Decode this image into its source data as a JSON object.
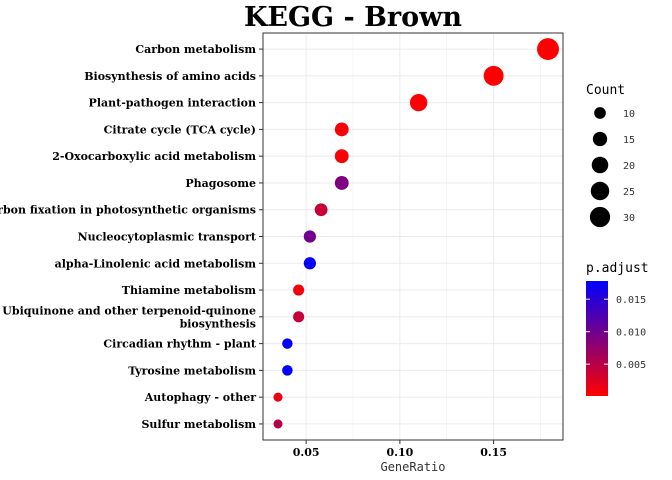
{
  "chart_data": {
    "type": "scatter",
    "title": "KEGG - Brown",
    "xlabel": "GeneRatio",
    "ylabel": "",
    "xlim": [
      0.027,
      0.187
    ],
    "xticks": [
      0.05,
      0.1,
      0.15
    ],
    "xtick_labels": [
      "0.05",
      "0.10",
      "0.15"
    ],
    "grid": true,
    "legend_placement": "right",
    "categories": [
      "Carbon metabolism",
      "Biosynthesis of amino acids",
      "Plant-pathogen interaction",
      "Citrate cycle (TCA cycle)",
      "2-Oxocarboxylic acid metabolism",
      "Phagosome",
      "Carbon fixation in photosynthetic organisms",
      "Nucleocytoplasmic transport",
      "alpha-Linolenic acid metabolism",
      "Thiamine metabolism",
      "Ubiquinone and other terpenoid-quinone\nbiosynthesis",
      "Circadian rhythm - plant",
      "Tyrosine metabolism",
      "Autophagy - other",
      "Sulfur metabolism"
    ],
    "points": [
      {
        "category": "Carbon metabolism",
        "x": 0.179,
        "count": 35,
        "p_adjust": 0.0001
      },
      {
        "category": "Biosynthesis of amino acids",
        "x": 0.15,
        "count": 29,
        "p_adjust": 0.0002
      },
      {
        "category": "Plant-pathogen interaction",
        "x": 0.11,
        "count": 22,
        "p_adjust": 0.0003
      },
      {
        "category": "Citrate cycle (TCA cycle)",
        "x": 0.069,
        "count": 14,
        "p_adjust": 0.0005
      },
      {
        "category": "2-Oxocarboxylic acid metabolism",
        "x": 0.069,
        "count": 14,
        "p_adjust": 0.0005
      },
      {
        "category": "Phagosome",
        "x": 0.069,
        "count": 14,
        "p_adjust": 0.009
      },
      {
        "category": "Carbon fixation in photosynthetic organisms",
        "x": 0.058,
        "count": 12,
        "p_adjust": 0.004
      },
      {
        "category": "Nucleocytoplasmic transport",
        "x": 0.052,
        "count": 11,
        "p_adjust": 0.01
      },
      {
        "category": "alpha-Linolenic acid metabolism",
        "x": 0.052,
        "count": 11,
        "p_adjust": 0.0175
      },
      {
        "category": "Thiamine metabolism",
        "x": 0.046,
        "count": 9,
        "p_adjust": 0.0009
      },
      {
        "category": "Ubiquinone and other terpenoid-quinone\nbiosynthesis",
        "x": 0.046,
        "count": 9,
        "p_adjust": 0.004
      },
      {
        "category": "Circadian rhythm - plant",
        "x": 0.04,
        "count": 8,
        "p_adjust": 0.0175
      },
      {
        "category": "Tyrosine metabolism",
        "x": 0.04,
        "count": 8,
        "p_adjust": 0.0175
      },
      {
        "category": "Autophagy - other",
        "x": 0.035,
        "count": 6,
        "p_adjust": 0.0015
      },
      {
        "category": "Sulfur metabolism",
        "x": 0.035,
        "count": 6,
        "p_adjust": 0.005
      }
    ],
    "size_legend": {
      "title": "Count",
      "values": [
        10,
        15,
        20,
        25,
        30
      ],
      "labels": [
        "10",
        "15",
        "20",
        "25",
        "30"
      ]
    },
    "color_legend": {
      "title": "p.adjust",
      "range": [
        0.0001,
        0.0178
      ],
      "ticks": [
        0.005,
        0.01,
        0.015
      ],
      "labels": [
        "0.005",
        "0.010",
        "0.015"
      ],
      "low_color": "#ff0000",
      "high_color": "#0000ff"
    },
    "colors": {
      "panel_border": "#333333",
      "grid": "#ebebeb"
    }
  }
}
